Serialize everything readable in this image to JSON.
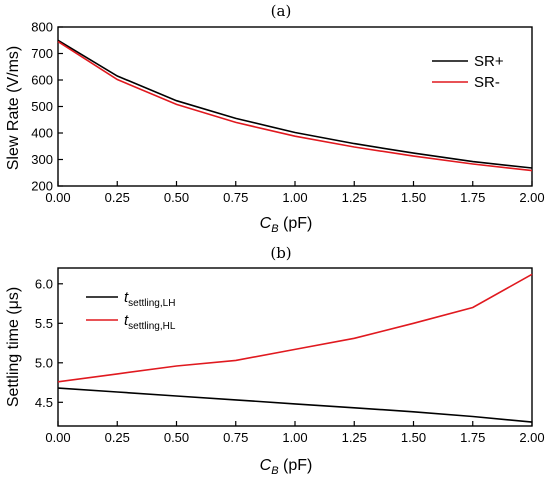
{
  "chart_data": [
    {
      "type": "line",
      "panel_label": "(a)",
      "xlabel_main": "C",
      "xlabel_sub": "B",
      "xlabel_unit": " (pF)",
      "ylabel": "Slew Rate (V/ms)",
      "xlim": [
        0,
        2
      ],
      "ylim": [
        200,
        800
      ],
      "x_ticks": [
        0.0,
        0.25,
        0.5,
        0.75,
        1.0,
        1.25,
        1.5,
        1.75,
        2.0
      ],
      "x_tick_labels": [
        "0.00",
        "0.25",
        "0.50",
        "0.75",
        "1.00",
        "1.25",
        "1.50",
        "1.75",
        "2.00"
      ],
      "y_ticks": [
        200,
        300,
        400,
        500,
        600,
        700,
        800
      ],
      "y_tick_labels": [
        "200",
        "300",
        "400",
        "500",
        "600",
        "700",
        "800"
      ],
      "legend_position": "top-right",
      "x": [
        0.0,
        0.25,
        0.5,
        0.75,
        1.0,
        1.25,
        1.5,
        1.75,
        2.0
      ],
      "series": [
        {
          "name": "SR+",
          "color": "#000000",
          "values": [
            750,
            615,
            522,
            455,
            402,
            360,
            324,
            292,
            268
          ]
        },
        {
          "name": "SR-",
          "color": "#e0191f",
          "values": [
            745,
            602,
            508,
            440,
            388,
            347,
            313,
            283,
            258
          ]
        }
      ]
    },
    {
      "type": "line",
      "panel_label": "(b)",
      "xlabel_main": "C",
      "xlabel_sub": "B",
      "xlabel_unit": " (pF)",
      "ylabel": "Settling time (μs)",
      "xlim": [
        0,
        2
      ],
      "ylim": [
        4.2,
        6.2
      ],
      "x_ticks": [
        0.0,
        0.25,
        0.5,
        0.75,
        1.0,
        1.25,
        1.5,
        1.75,
        2.0
      ],
      "x_tick_labels": [
        "0.00",
        "0.25",
        "0.50",
        "0.75",
        "1.00",
        "1.25",
        "1.50",
        "1.75",
        "2.00"
      ],
      "y_ticks": [
        4.5,
        5.0,
        5.5,
        6.0
      ],
      "y_tick_labels": [
        "4.5",
        "5.0",
        "5.5",
        "6.0"
      ],
      "legend_position": "top-left",
      "x": [
        0.0,
        0.25,
        0.5,
        0.75,
        1.0,
        1.25,
        1.5,
        1.75,
        2.0
      ],
      "series": [
        {
          "name_main": "t",
          "name_sub": "settling,LH",
          "color": "#000000",
          "values": [
            4.68,
            4.63,
            4.58,
            4.53,
            4.48,
            4.43,
            4.38,
            4.32,
            4.25
          ]
        },
        {
          "name_main": "t",
          "name_sub": "settling,HL",
          "color": "#e0191f",
          "values": [
            4.76,
            4.86,
            4.96,
            5.03,
            5.17,
            5.31,
            5.5,
            5.7,
            6.12
          ]
        }
      ]
    }
  ]
}
